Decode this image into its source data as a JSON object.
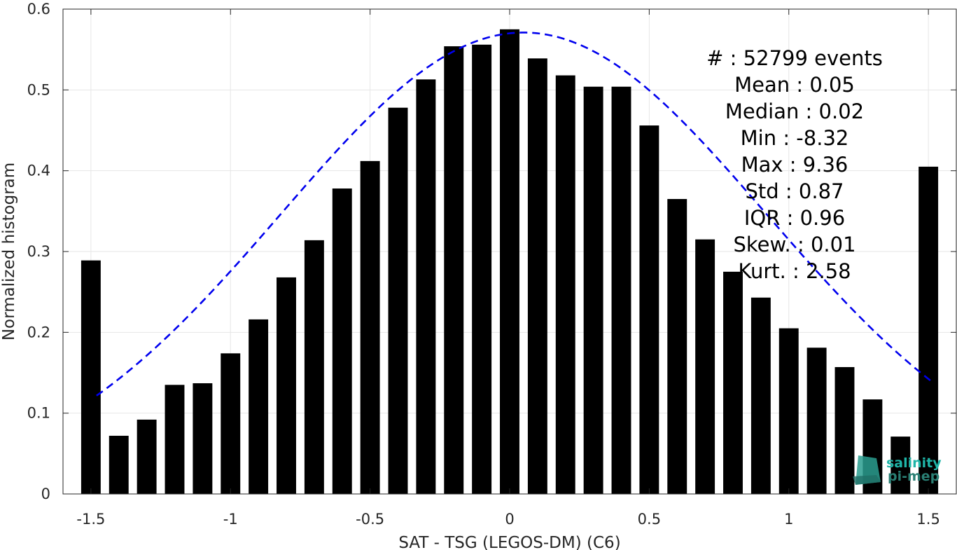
{
  "chart_data": {
    "type": "bar",
    "xlabel": "SAT - TSG (LEGOS-DM) (C6)",
    "ylabel": "Normalized histogram",
    "xlim": [
      -1.6,
      1.6
    ],
    "ylim": [
      0,
      0.6
    ],
    "xticks": [
      -1.5,
      -1,
      -0.5,
      0,
      0.5,
      1,
      1.5
    ],
    "xtick_labels": [
      "-1.5",
      "-1",
      "-0.5",
      "0",
      "0.5",
      "1",
      "1.5"
    ],
    "yticks": [
      0,
      0.1,
      0.2,
      0.3,
      0.4,
      0.5,
      0.6
    ],
    "ytick_labels": [
      "0",
      "0.1",
      "0.2",
      "0.3",
      "0.4",
      "0.5",
      "0.6"
    ],
    "grid": true,
    "bar_width": 0.07,
    "x": [
      -1.5,
      -1.4,
      -1.3,
      -1.2,
      -1.1,
      -1.0,
      -0.9,
      -0.8,
      -0.7,
      -0.6,
      -0.5,
      -0.4,
      -0.3,
      -0.2,
      -0.1,
      0.0,
      0.1,
      0.2,
      0.3,
      0.4,
      0.5,
      0.6,
      0.7,
      0.8,
      0.9,
      1.0,
      1.1,
      1.2,
      1.3,
      1.4,
      1.5
    ],
    "values": [
      0.289,
      0.072,
      0.092,
      0.135,
      0.137,
      0.174,
      0.216,
      0.268,
      0.314,
      0.378,
      0.412,
      0.478,
      0.513,
      0.554,
      0.556,
      0.575,
      0.539,
      0.518,
      0.504,
      0.504,
      0.456,
      0.365,
      0.315,
      0.275,
      0.243,
      0.205,
      0.181,
      0.157,
      0.117,
      0.071,
      0.405
    ],
    "bar_color": "#000000",
    "fit": {
      "style": "dashed",
      "color": "#0000ee",
      "mean": 0.05,
      "std": 0.87,
      "peak": 0.571,
      "x_range": [
        -1.48,
        1.52
      ]
    },
    "stats": [
      {
        "label": "#  : 52799 events"
      },
      {
        "label": "Mean : 0.05"
      },
      {
        "label": "Median : 0.02"
      },
      {
        "label": "Min : -8.32"
      },
      {
        "label": "Max : 9.36"
      },
      {
        "label": "Std : 0.87"
      },
      {
        "label": "IQR : 0.96"
      },
      {
        "label": "Skew. : 0.01"
      },
      {
        "label": "Kurt. : 2.58"
      }
    ]
  },
  "logo": {
    "line1": "salinity",
    "line2": "pi-mep",
    "color1": "#1fb5a8",
    "color2": "#2a7f74"
  }
}
